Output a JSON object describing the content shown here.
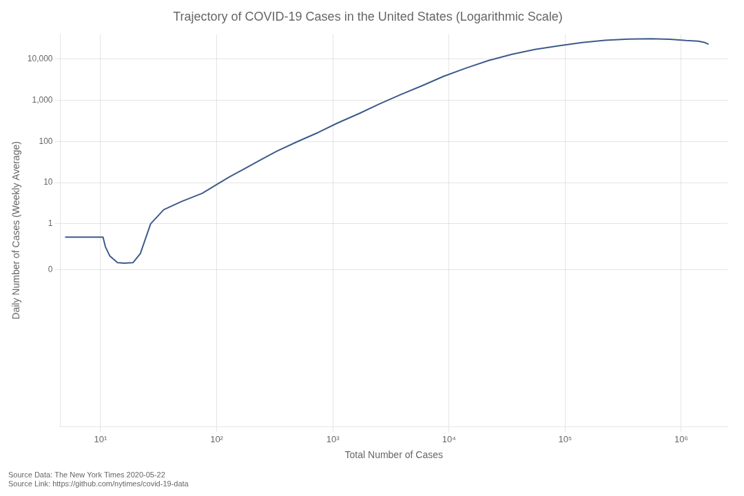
{
  "chart_data": {
    "type": "line",
    "title": "Trajectory of COVID-19 Cases in the United States (Logarithmic Scale)",
    "xlabel": "Total Number of Cases",
    "ylabel": "Daily Number of Cases (Weekly Average)",
    "annotations": [
      "Source Data: The New York Times 2020-05-22",
      "Source Link: https://github.com/nytimes/covid-19-data"
    ],
    "x": [
      5,
      6,
      7,
      8,
      9,
      10,
      10.5,
      11,
      12,
      14,
      16,
      19,
      22,
      27,
      35,
      50,
      75,
      100,
      130,
      175,
      240,
      330,
      500,
      750,
      1100,
      1700,
      2500,
      3800,
      6000,
      9000,
      14000,
      22000,
      35000,
      55000,
      90000,
      140000,
      220000,
      350000,
      550000,
      800000,
      1100000,
      1400000,
      1600000,
      1700000
    ],
    "values": [
      0.71,
      0.71,
      0.71,
      0.71,
      0.71,
      0.71,
      0.71,
      0.5,
      0.3,
      0.15,
      0.14,
      0.15,
      0.35,
      1.0,
      2.2,
      3.5,
      5.5,
      9.0,
      14.0,
      22.0,
      36.0,
      58.0,
      100.0,
      165.0,
      280.0,
      480.0,
      800.0,
      1350.0,
      2300.0,
      3800.0,
      6000.0,
      9200.0,
      13000.0,
      17000.0,
      21000.0,
      25000.0,
      28500.0,
      30500.0,
      31000.0,
      30000.0,
      28000.0,
      27000.0,
      25000.0,
      23000.0
    ],
    "color": "#3d5a8a",
    "log": true,
    "xlim": [
      4.5,
      2500000
    ],
    "ylim": [
      -500,
      40000
    ],
    "xticks": [
      {
        "value": 10,
        "label": "10¹"
      },
      {
        "value": 100,
        "label": "10²"
      },
      {
        "value": 1000,
        "label": "10³"
      },
      {
        "value": 10000,
        "label": "10⁴"
      },
      {
        "value": 100000,
        "label": "10⁵"
      },
      {
        "value": 1000000,
        "label": "10⁶"
      }
    ],
    "yticks": [
      0,
      1,
      10,
      100,
      {
        "value": 1000,
        "label": "1,000"
      },
      {
        "value": 10000,
        "label": "10,000"
      }
    ],
    "grid": true
  }
}
